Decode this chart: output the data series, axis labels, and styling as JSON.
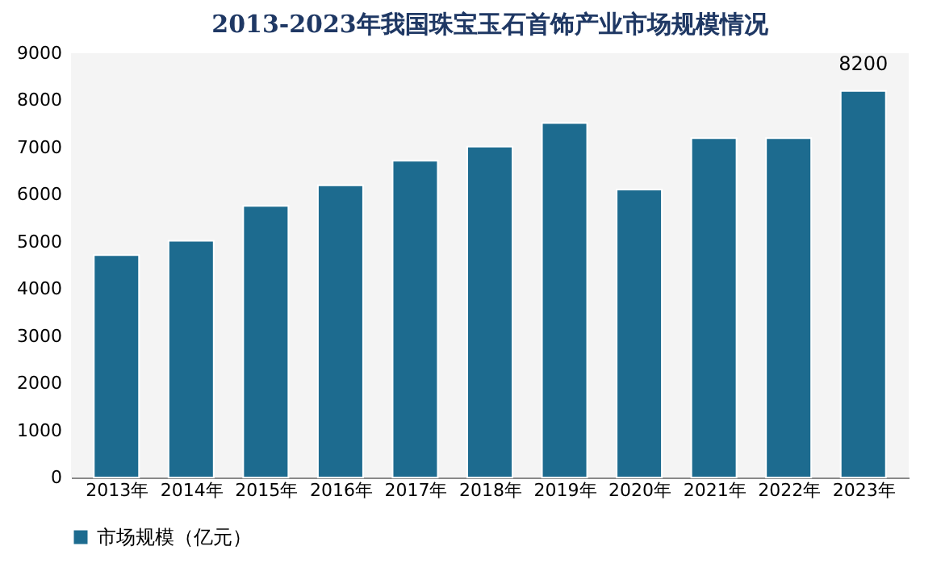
{
  "chart_data": {
    "type": "bar",
    "title": "2013-2023年我国珠宝玉石首饰产业市场规模情况",
    "categories": [
      "2013年",
      "2014年",
      "2015年",
      "2016年",
      "2017年",
      "2018年",
      "2019年",
      "2020年",
      "2021年",
      "2022年",
      "2023年"
    ],
    "series": [
      {
        "name": "市场规模（亿元）",
        "color": "#1d6b8f",
        "values": [
          4720,
          5020,
          5760,
          6200,
          6720,
          7020,
          7520,
          6110,
          7200,
          7200,
          8200
        ],
        "value_labels": [
          null,
          null,
          null,
          null,
          null,
          null,
          null,
          null,
          null,
          null,
          "8200"
        ]
      }
    ],
    "ylim": [
      0,
      9000
    ],
    "yticks": [
      0,
      1000,
      2000,
      3000,
      4000,
      5000,
      6000,
      7000,
      8000,
      9000
    ],
    "grid": false,
    "legend": "bottom"
  }
}
